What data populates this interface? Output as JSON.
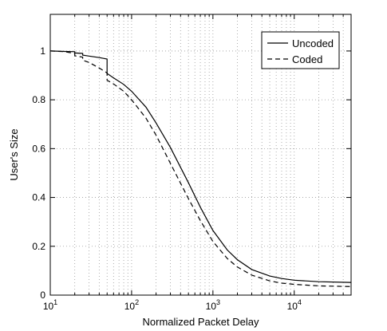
{
  "chart_data": {
    "type": "line",
    "title": "",
    "xlabel": "Normalized Packet Delay",
    "ylabel": "User's Size",
    "xscale": "log",
    "xlim": [
      10,
      50000
    ],
    "ylim": [
      0,
      1.15
    ],
    "grid": true,
    "legend_position": "top-right",
    "x_ticks": [
      {
        "value": 10,
        "base": "10",
        "exp": "1"
      },
      {
        "value": 100,
        "base": "10",
        "exp": "2"
      },
      {
        "value": 1000,
        "base": "10",
        "exp": "3"
      },
      {
        "value": 10000,
        "base": "10",
        "exp": "4"
      }
    ],
    "y_ticks": [
      {
        "value": 0,
        "label": "0"
      },
      {
        "value": 0.2,
        "label": "0.2"
      },
      {
        "value": 0.4,
        "label": "0.4"
      },
      {
        "value": 0.6,
        "label": "0.6"
      },
      {
        "value": 0.8,
        "label": "0.8"
      },
      {
        "value": 1,
        "label": "1"
      }
    ],
    "series": [
      {
        "name": "Uncoded",
        "line_style": "solid",
        "color": "#000000",
        "x": [
          10,
          15,
          20,
          20,
          25,
          25,
          30,
          40,
          50,
          50,
          60,
          80,
          100,
          150,
          200,
          300,
          500,
          700,
          1000,
          1500,
          2000,
          3000,
          5000,
          7000,
          10000,
          20000,
          50000
        ],
        "y": [
          1.0,
          0.998,
          0.997,
          0.992,
          0.99,
          0.983,
          0.979,
          0.973,
          0.967,
          0.908,
          0.89,
          0.863,
          0.835,
          0.77,
          0.705,
          0.605,
          0.46,
          0.36,
          0.265,
          0.185,
          0.145,
          0.105,
          0.078,
          0.068,
          0.061,
          0.055,
          0.052
        ]
      },
      {
        "name": "Coded",
        "line_style": "dashed",
        "color": "#000000",
        "x": [
          10,
          15,
          20,
          20,
          25,
          25,
          30,
          40,
          50,
          50,
          60,
          80,
          100,
          150,
          200,
          300,
          500,
          700,
          1000,
          1500,
          2000,
          3000,
          5000,
          7000,
          10000,
          20000,
          50000
        ],
        "y": [
          1.0,
          0.997,
          0.99,
          0.98,
          0.975,
          0.962,
          0.953,
          0.93,
          0.91,
          0.88,
          0.865,
          0.835,
          0.8,
          0.725,
          0.655,
          0.54,
          0.395,
          0.305,
          0.22,
          0.15,
          0.115,
          0.082,
          0.058,
          0.049,
          0.044,
          0.038,
          0.035
        ]
      }
    ]
  }
}
